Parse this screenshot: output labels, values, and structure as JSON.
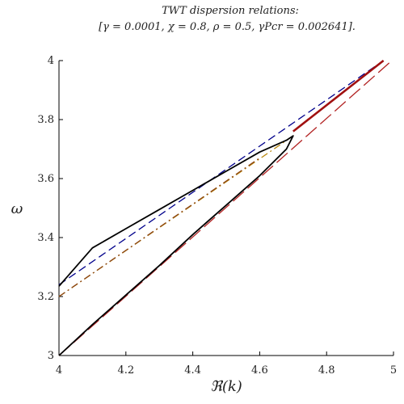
{
  "chart_data": {
    "type": "line",
    "title": "TWT dispersion relations:",
    "subtitle": "[γ = 0.0001, χ = 0.8, ρ = 0.5, γPcr = 0.002641].",
    "xlabel": "ℜ(k)",
    "ylabel": "ω",
    "xlim": [
      4,
      5
    ],
    "ylim": [
      3,
      4
    ],
    "xticks": [
      4,
      4.2,
      4.4,
      4.6,
      4.8,
      5
    ],
    "xtick_labels": [
      "4",
      "4.2",
      "4.4",
      "4.6",
      "4.8",
      "5"
    ],
    "yticks": [
      3,
      3.2,
      3.4,
      3.6,
      3.8,
      4
    ],
    "ytick_labels": [
      "3",
      "3.2",
      "3.4",
      "3.6",
      "3.8",
      "4"
    ],
    "grid": false,
    "series": [
      {
        "style": "dashed",
        "color": "#00008b",
        "x": [
          4.0,
          4.97
        ],
        "y": [
          3.24,
          4.0
        ]
      },
      {
        "style": "dash-dot",
        "color": "#b8860b",
        "x": [
          4.0,
          4.7
        ],
        "y": [
          3.2,
          3.745
        ]
      },
      {
        "style": "long-dashed",
        "color": "#b22222",
        "x": [
          4.0,
          4.99
        ],
        "y": [
          3.0,
          3.995
        ]
      },
      {
        "style": "dash-dot",
        "color": "#8b4513",
        "x": [
          4.0,
          4.6
        ],
        "y": [
          3.2,
          3.67
        ]
      },
      {
        "style": "solid",
        "color": "#000000",
        "x": [
          4.0,
          4.1,
          4.2,
          4.3,
          4.4,
          4.5,
          4.6,
          4.68,
          4.7,
          4.68,
          4.6,
          4.5,
          4.4,
          4.3,
          4.2,
          4.1,
          4.0
        ],
        "y": [
          3.0,
          3.105,
          3.205,
          3.305,
          3.41,
          3.51,
          3.61,
          3.7,
          3.745,
          3.73,
          3.69,
          3.625,
          3.56,
          3.495,
          3.43,
          3.365,
          3.235
        ]
      },
      {
        "style": "solid-thick",
        "color": "#a01010",
        "x": [
          4.7,
          4.97
        ],
        "y": [
          3.76,
          4.0
        ]
      }
    ]
  }
}
